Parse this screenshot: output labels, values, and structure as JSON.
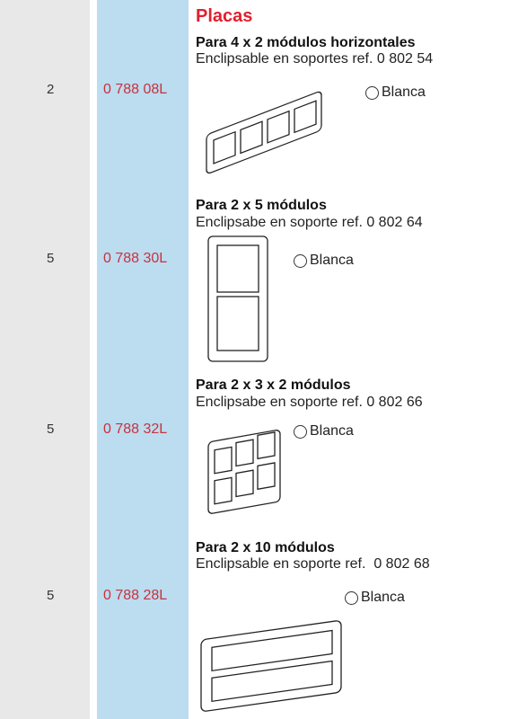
{
  "header": {
    "title": "Placas"
  },
  "items": [
    {
      "qty": "2",
      "ref": "0 788 08L",
      "title": "Para 4 x 2 módulos horizontales",
      "subtitle": "Enclipsable en soportes ref. 0 802 54",
      "finish": "Blanca"
    },
    {
      "qty": "5",
      "ref": "0 788 30L",
      "title": "Para 2 x 5 módulos",
      "subtitle": "Enclipsabe en soporte ref. 0 802 64",
      "finish": "Blanca"
    },
    {
      "qty": "5",
      "ref": "0 788 32L",
      "title": "Para 2 x 3 x 2 módulos",
      "subtitle": "Enclipsabe en soporte ref. 0 802 66",
      "finish": "Blanca"
    },
    {
      "qty": "5",
      "ref": "0 788 28L",
      "title": "Para 2 x 10 módulos",
      "subtitle": "Enclipsable en soporte ref.  0 802 68",
      "finish": "Blanca"
    }
  ]
}
